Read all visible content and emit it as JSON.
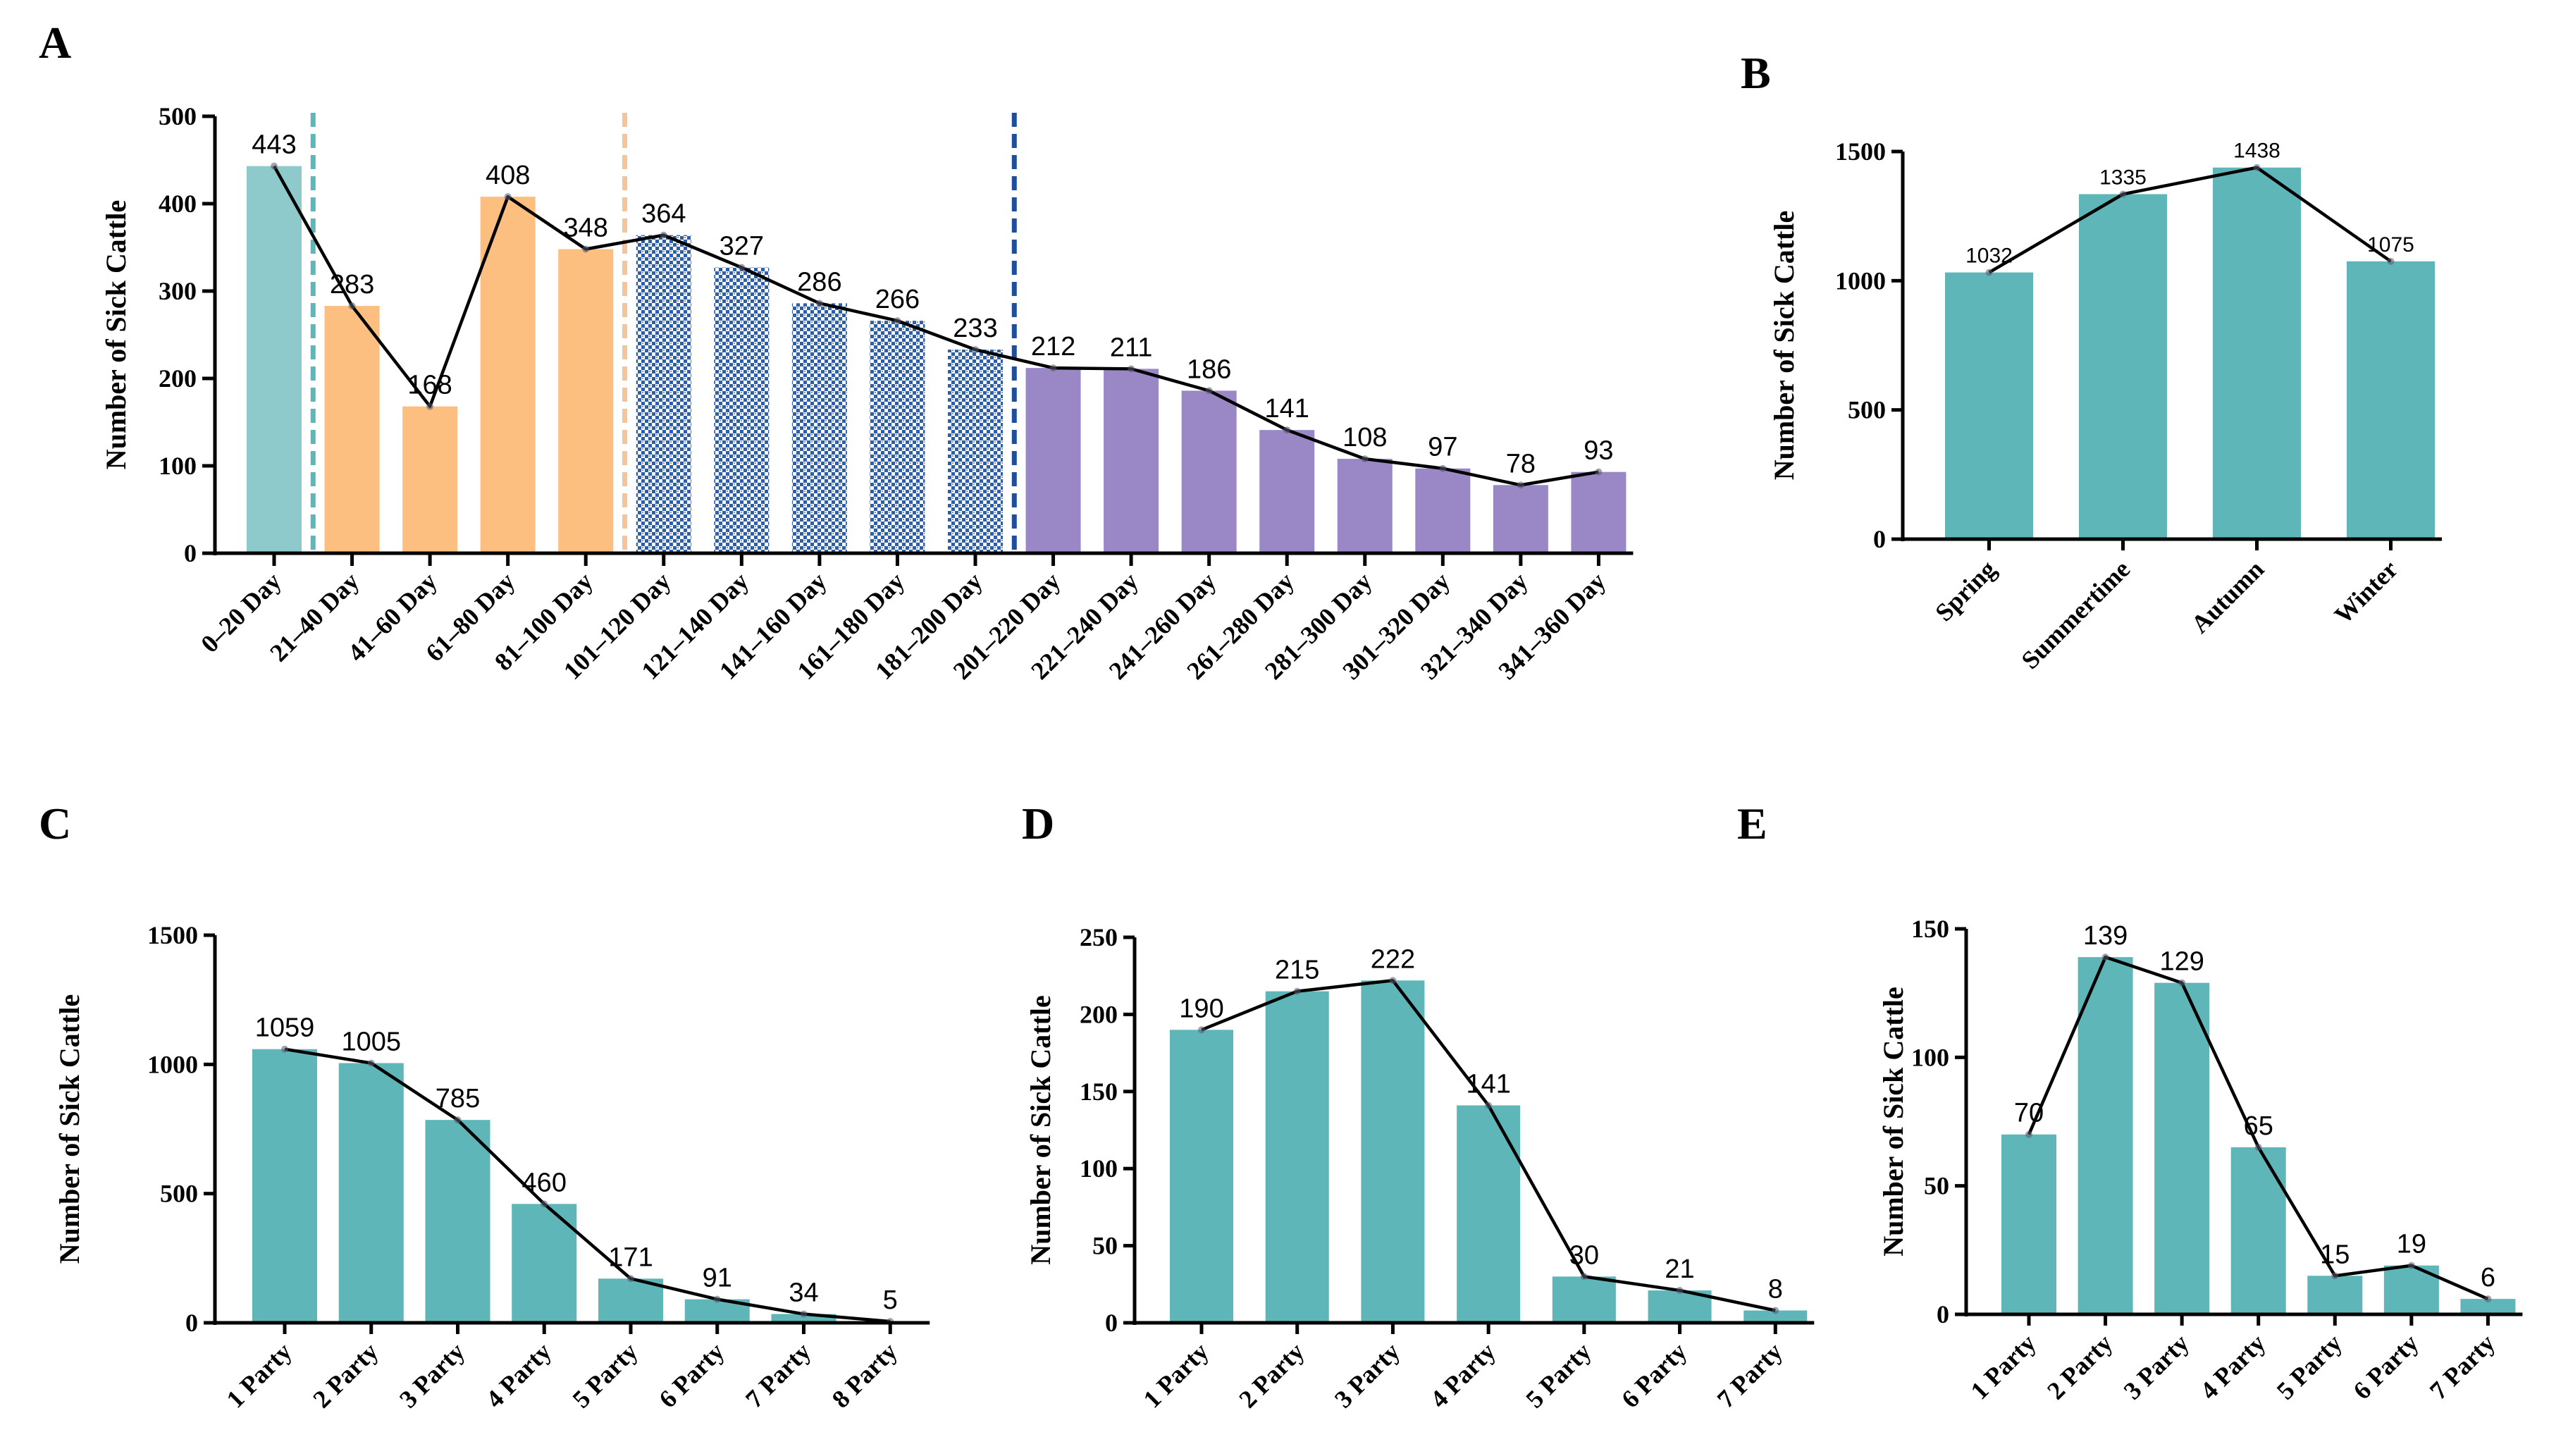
{
  "colors": {
    "teal_light": "#8ecacb",
    "orange": "#fcbf7f",
    "blue_pattern": "#2c5fa8",
    "purple": "#9987c6",
    "teal": "#5fb6b8",
    "dash_teal": "#5fb6b8",
    "dash_orange": "#f4c49a",
    "dash_blue": "#1f4f9a"
  },
  "chart_data": [
    {
      "panel": "A",
      "type": "bar",
      "ylabel": "Number of Sick Cattle",
      "ylim": [
        0,
        500
      ],
      "yticks": [
        0,
        100,
        200,
        300,
        400,
        500
      ],
      "categories": [
        "0–20 Day",
        "21–40 Day",
        "41–60 Day",
        "61–80 Day",
        "81–100 Day",
        "101–120 Day",
        "121–140 Day",
        "141–160 Day",
        "161–180 Day",
        "181–200 Day",
        "201–220 Day",
        "221–240 Day",
        "241–260 Day",
        "261–280 Day",
        "281–300 Day",
        "301–320 Day",
        "321–340 Day",
        "341–360 Day"
      ],
      "values": [
        443,
        283,
        168,
        408,
        348,
        364,
        327,
        286,
        266,
        233,
        212,
        211,
        186,
        141,
        108,
        97,
        78,
        93
      ],
      "groups": [
        "teal_light",
        "orange",
        "orange",
        "orange",
        "orange",
        "blue_pattern",
        "blue_pattern",
        "blue_pattern",
        "blue_pattern",
        "blue_pattern",
        "purple",
        "purple",
        "purple",
        "purple",
        "purple",
        "purple",
        "purple",
        "purple"
      ],
      "period_dividers": [
        {
          "after_index": 0,
          "color": "dash_teal"
        },
        {
          "after_index": 4,
          "color": "dash_orange"
        },
        {
          "after_index": 9,
          "color": "dash_blue"
        }
      ],
      "trend_line": true
    },
    {
      "panel": "B",
      "type": "bar",
      "ylabel": "Number of Sick Cattle",
      "ylim": [
        0,
        1500
      ],
      "yticks": [
        0,
        500,
        1000,
        1500
      ],
      "categories": [
        "Spring",
        "Summertime",
        "Autumn",
        "Winter"
      ],
      "values": [
        1032,
        1335,
        1438,
        1075
      ],
      "trend_line": true
    },
    {
      "panel": "C",
      "type": "bar",
      "ylabel": "Number of Sick Cattle",
      "ylim": [
        0,
        1500
      ],
      "yticks": [
        0,
        500,
        1000,
        1500
      ],
      "categories": [
        "1 Party",
        "2 Party",
        "3 Party",
        "4 Party",
        "5 Party",
        "6 Party",
        "7 Party",
        "8 Party"
      ],
      "values": [
        1059,
        1005,
        785,
        460,
        171,
        91,
        34,
        5
      ],
      "trend_line": true
    },
    {
      "panel": "D",
      "type": "bar",
      "ylabel": "Number of Sick Cattle",
      "ylim": [
        0,
        250
      ],
      "yticks": [
        0,
        50,
        100,
        150,
        200,
        250
      ],
      "categories": [
        "1 Party",
        "2 Party",
        "3 Party",
        "4 Party",
        "5 Party",
        "6 Party",
        "7 Party"
      ],
      "values": [
        190,
        215,
        222,
        141,
        30,
        21,
        8
      ],
      "trend_line": true
    },
    {
      "panel": "E",
      "type": "bar",
      "ylabel": "Number of Sick Cattle",
      "ylim": [
        0,
        150
      ],
      "yticks": [
        0,
        50,
        100,
        150
      ],
      "categories": [
        "1 Party",
        "2 Party",
        "3 Party",
        "4 Party",
        "5 Party",
        "6 Party",
        "7 Party"
      ],
      "values": [
        70,
        139,
        129,
        65,
        15,
        19,
        6
      ],
      "trend_line": true
    }
  ]
}
